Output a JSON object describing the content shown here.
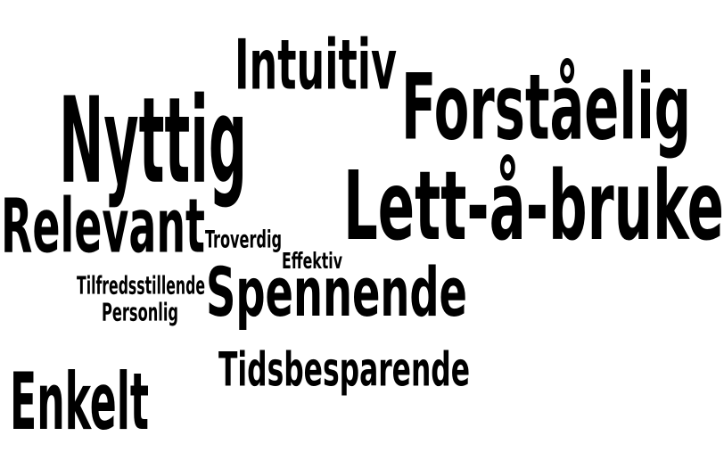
{
  "cloud": {
    "words": {
      "intuitiv": "Intuitiv",
      "forstaelig": "Forståelig",
      "nyttig": "Nyttig",
      "lett_a_bruke": "Lett-å-bruke",
      "relevant": "Relevant",
      "troverdig": "Troverdig",
      "effektiv": "Effektiv",
      "tilfredsstillende": "Tilfredsstillende",
      "personlig": "Personlig",
      "spennende": "Spennende",
      "tidsbesparende": "Tidsbesparende",
      "enkelt": "Enkelt"
    },
    "colors": {
      "text": "#000000",
      "background": "#ffffff"
    }
  }
}
